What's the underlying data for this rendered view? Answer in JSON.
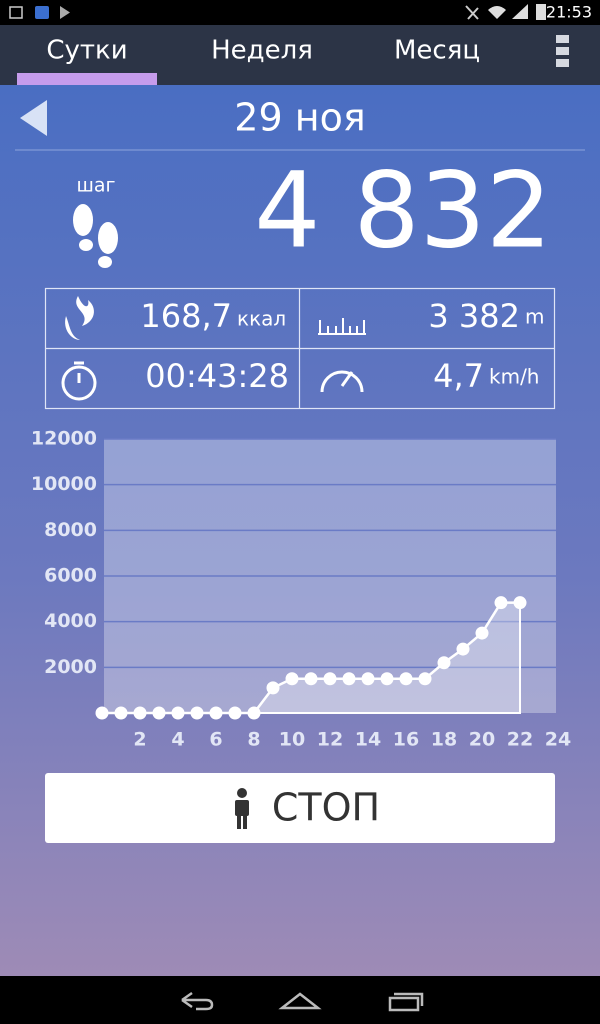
{
  "status_bar": {
    "time": "21:53"
  },
  "tabs": [
    "Сутки",
    "Неделя",
    "Месяц"
  ],
  "date": "29 ноя",
  "steps": {
    "label": "шаг",
    "value": "4 832"
  },
  "stats": [
    {
      "value": "168,7",
      "unit": "ккал"
    },
    {
      "value": "3 382",
      "unit": "m"
    },
    {
      "value": "00:43:28"
    },
    {
      "value": "4,7",
      "unit": "km/h"
    }
  ],
  "chart_data": {
    "type": "line",
    "area": true,
    "color": "#ffffff",
    "grid": true,
    "x": [
      0,
      1,
      2,
      3,
      4,
      5,
      6,
      7,
      8,
      9,
      10,
      11,
      12,
      13,
      14,
      15,
      16,
      17,
      18,
      19,
      20,
      21,
      22
    ],
    "values": [
      0,
      0,
      0,
      0,
      0,
      0,
      0,
      0,
      0,
      1100,
      1500,
      1500,
      1500,
      1500,
      1500,
      1500,
      1500,
      1500,
      2200,
      2800,
      3500,
      4832,
      4832
    ],
    "xlim": [
      0,
      24
    ],
    "xticks": [
      2,
      4,
      6,
      8,
      10,
      12,
      14,
      16,
      18,
      20,
      22,
      24
    ],
    "ylim": [
      0,
      12000
    ],
    "yticks": [
      2000,
      4000,
      6000,
      8000,
      10000,
      12000
    ]
  },
  "button": "СТОП"
}
